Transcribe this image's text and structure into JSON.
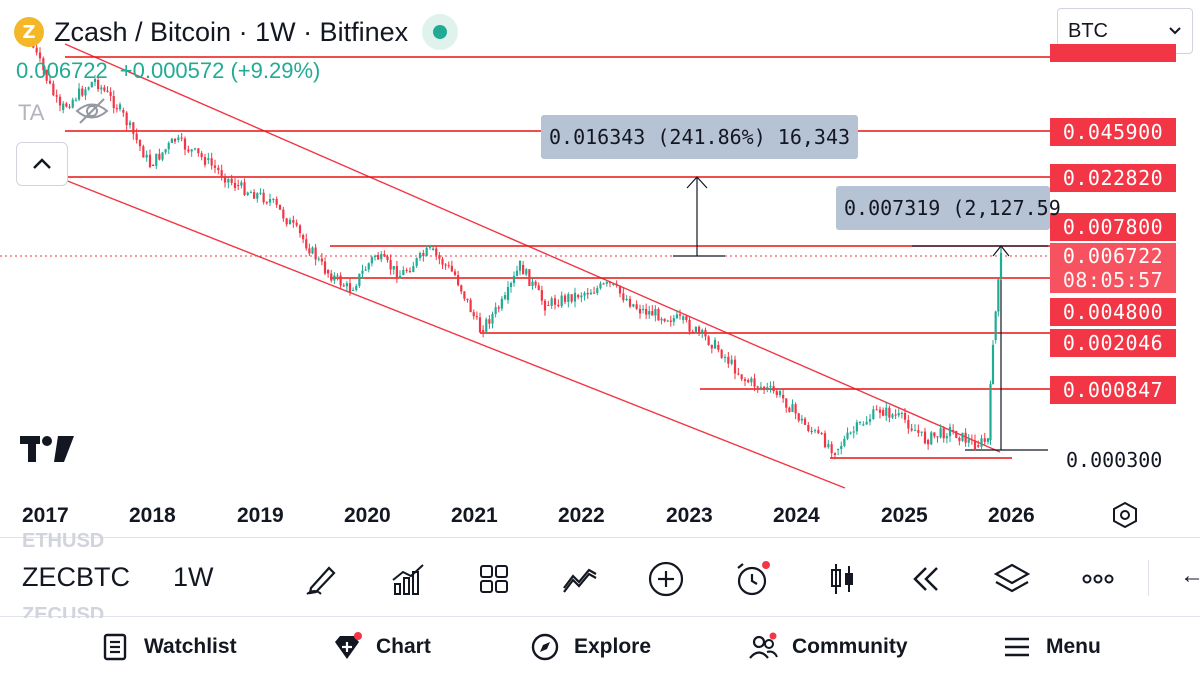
{
  "header": {
    "coin_letter": "Z",
    "title": "Zcash / Bitcoin · 1W · Bitfinex",
    "price": "0.006722",
    "change": "+0.000572 (+9.29%)",
    "ta_label": "TA"
  },
  "currency_select": {
    "value": "BTC"
  },
  "price_scale": {
    "tags": [
      "0.045900",
      "0.022820",
      "0.007800",
      "0.004800",
      "0.002046",
      "0.000847"
    ],
    "current_price": "0.006722",
    "countdown": "08:05:57",
    "plain_label": "0.000300"
  },
  "measurements": [
    {
      "text": "0.016343 (241.86%) 16,343"
    },
    {
      "text": "0.007319 (2,127.59"
    }
  ],
  "x_axis": {
    "years": [
      "2017",
      "2018",
      "2019",
      "2020",
      "2021",
      "2022",
      "2023",
      "2024",
      "2025",
      "2026"
    ]
  },
  "symbol_bar": {
    "ghost_above": "ETHUSD",
    "ghost_below": "ZECUSD",
    "symbol": "ZECBTC",
    "interval": "1W",
    "tools": [
      "pen-icon",
      "indicators-icon",
      "templates-icon",
      "patterns-icon",
      "add-icon",
      "alert-icon",
      "candles-icon",
      "replay-icon",
      "layers-icon",
      "more-icon"
    ]
  },
  "bottom_nav": {
    "watchlist": "Watchlist",
    "chart": "Chart",
    "explore": "Explore",
    "community": "Community",
    "menu": "Menu"
  },
  "colors": {
    "up": "#22ab94",
    "down": "#f23645",
    "level_line": "#e81414",
    "measure_bg": "#b6c3d4"
  }
}
